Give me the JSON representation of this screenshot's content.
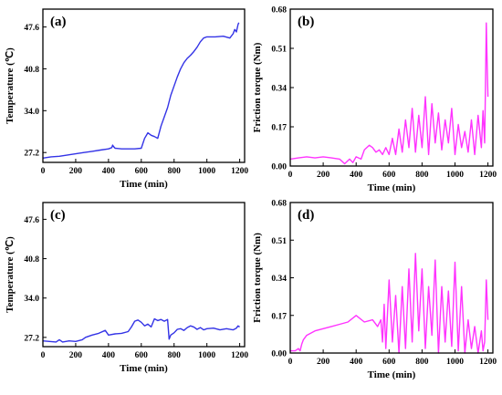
{
  "chart_data": [
    {
      "id": "a",
      "type": "line",
      "panel_label": "(a)",
      "xlabel": "Time (min)",
      "ylabel": "Temperature (℃)",
      "xlim": [
        0,
        1230
      ],
      "ylim": [
        25.6,
        50.5
      ],
      "x_ticks": [
        0,
        200,
        400,
        600,
        800,
        1000,
        1200
      ],
      "y_ticks": [
        27.2,
        34.0,
        40.8,
        47.6
      ],
      "y_tick_labels": [
        "27.2",
        "34.0",
        "40.8",
        "47.6"
      ],
      "color": "#3333e6",
      "series": [
        {
          "x": [
            0,
            50,
            100,
            150,
            200,
            250,
            300,
            350,
            400,
            420,
            425,
            430,
            440,
            480,
            520,
            560,
            600,
            620,
            640,
            660,
            680,
            700,
            720,
            740,
            760,
            780,
            800,
            820,
            840,
            860,
            880,
            900,
            920,
            940,
            960,
            980,
            1000,
            1050,
            1100,
            1140,
            1160,
            1170,
            1180,
            1190,
            1195
          ],
          "y": [
            26.3,
            26.5,
            26.6,
            26.8,
            27.0,
            27.2,
            27.4,
            27.6,
            27.8,
            28.0,
            28.4,
            28.2,
            27.9,
            27.8,
            27.8,
            27.8,
            27.9,
            29.5,
            30.4,
            30.0,
            29.8,
            29.5,
            31.5,
            33.0,
            34.5,
            36.5,
            38.0,
            39.5,
            40.8,
            41.8,
            42.5,
            43.0,
            43.6,
            44.3,
            45.2,
            45.8,
            46.0,
            46.0,
            46.1,
            45.8,
            46.5,
            47.2,
            46.8,
            48.0,
            48.3
          ]
        }
      ]
    },
    {
      "id": "b",
      "type": "line",
      "panel_label": "(b)",
      "xlabel": "Time (min)",
      "ylabel": "Friction torque (Nm)",
      "xlim": [
        0,
        1230
      ],
      "ylim": [
        0,
        0.68
      ],
      "x_ticks": [
        0,
        200,
        400,
        600,
        800,
        1000,
        1200
      ],
      "y_ticks": [
        0,
        0.17,
        0.34,
        0.51,
        0.68
      ],
      "y_tick_labels": [
        "0.00",
        "0.17",
        "0.34",
        "0.51",
        "0.68"
      ],
      "color": "#ff33ff",
      "series": [
        {
          "x": [
            0,
            50,
            100,
            150,
            200,
            250,
            300,
            330,
            360,
            380,
            400,
            430,
            450,
            480,
            500,
            520,
            540,
            560,
            580,
            600,
            620,
            640,
            660,
            680,
            700,
            720,
            740,
            760,
            780,
            800,
            820,
            840,
            860,
            880,
            900,
            920,
            940,
            960,
            980,
            1000,
            1020,
            1040,
            1060,
            1080,
            1100,
            1120,
            1140,
            1160,
            1170,
            1180,
            1185,
            1190,
            1195,
            1200
          ],
          "y": [
            0.03,
            0.035,
            0.04,
            0.035,
            0.04,
            0.035,
            0.03,
            0.01,
            0.03,
            0.015,
            0.04,
            0.03,
            0.07,
            0.09,
            0.08,
            0.06,
            0.07,
            0.05,
            0.08,
            0.05,
            0.12,
            0.05,
            0.16,
            0.06,
            0.2,
            0.08,
            0.25,
            0.06,
            0.22,
            0.08,
            0.3,
            0.05,
            0.27,
            0.1,
            0.23,
            0.07,
            0.2,
            0.1,
            0.25,
            0.05,
            0.18,
            0.08,
            0.15,
            0.06,
            0.2,
            0.05,
            0.22,
            0.08,
            0.24,
            0.1,
            0.35,
            0.62,
            0.45,
            0.3
          ]
        }
      ]
    },
    {
      "id": "c",
      "type": "line",
      "panel_label": "(c)",
      "xlabel": "Time (min)",
      "ylabel": "Temperature (℃)",
      "xlim": [
        0,
        1230
      ],
      "ylim": [
        25.6,
        50.5
      ],
      "x_ticks": [
        0,
        200,
        400,
        600,
        800,
        1000,
        1200
      ],
      "y_ticks": [
        27.2,
        34.0,
        40.8,
        47.6
      ],
      "y_tick_labels": [
        "27.2",
        "34.0",
        "40.8",
        "47.6"
      ],
      "color": "#3333e6",
      "series": [
        {
          "x": [
            0,
            40,
            80,
            100,
            120,
            160,
            200,
            240,
            260,
            300,
            340,
            380,
            400,
            440,
            480,
            520,
            540,
            560,
            580,
            600,
            620,
            640,
            660,
            680,
            700,
            720,
            740,
            760,
            770,
            780,
            800,
            820,
            840,
            860,
            880,
            900,
            920,
            940,
            960,
            980,
            1000,
            1040,
            1080,
            1120,
            1160,
            1180,
            1190,
            1200
          ],
          "y": [
            26.6,
            26.5,
            26.4,
            26.8,
            26.4,
            26.6,
            26.5,
            26.8,
            27.2,
            27.6,
            27.9,
            28.4,
            27.6,
            27.8,
            27.9,
            28.2,
            29.0,
            30.0,
            30.2,
            29.8,
            29.2,
            29.5,
            29.0,
            30.4,
            30.1,
            30.3,
            30.0,
            30.3,
            26.9,
            27.6,
            28.0,
            28.6,
            28.7,
            28.4,
            28.9,
            29.2,
            29.0,
            28.6,
            28.9,
            28.5,
            28.7,
            28.8,
            28.5,
            28.7,
            28.5,
            28.8,
            29.2,
            29.0
          ]
        }
      ]
    },
    {
      "id": "d",
      "type": "line",
      "panel_label": "(d)",
      "xlabel": "Time (min)",
      "ylabel": "Friction torque (Nm)",
      "xlim": [
        0,
        1230
      ],
      "ylim": [
        0,
        0.68
      ],
      "x_ticks": [
        0,
        200,
        400,
        600,
        800,
        1000,
        1200
      ],
      "y_ticks": [
        0,
        0.17,
        0.34,
        0.51,
        0.68
      ],
      "y_tick_labels": [
        "0.00",
        "0.17",
        "0.34",
        "0.51",
        "0.68"
      ],
      "color": "#ff33ff",
      "series": [
        {
          "x": [
            0,
            30,
            50,
            60,
            70,
            80,
            100,
            150,
            200,
            250,
            300,
            350,
            400,
            450,
            500,
            530,
            550,
            560,
            570,
            580,
            600,
            620,
            640,
            660,
            680,
            700,
            720,
            740,
            760,
            780,
            800,
            820,
            840,
            860,
            880,
            900,
            920,
            940,
            960,
            980,
            1000,
            1020,
            1040,
            1060,
            1080,
            1100,
            1120,
            1140,
            1160,
            1170,
            1180,
            1190,
            1200
          ],
          "y": [
            0.01,
            0.01,
            0.02,
            0.01,
            0.04,
            0.06,
            0.08,
            0.1,
            0.11,
            0.12,
            0.13,
            0.14,
            0.17,
            0.14,
            0.15,
            0.12,
            0.15,
            0.05,
            0.22,
            0.02,
            0.33,
            0.05,
            0.26,
            0.0,
            0.3,
            0.02,
            0.38,
            0.05,
            0.45,
            0.1,
            0.38,
            0.02,
            0.3,
            0.08,
            0.42,
            0.0,
            0.3,
            0.05,
            0.28,
            0.03,
            0.41,
            0.01,
            0.3,
            0.0,
            0.15,
            0.02,
            0.12,
            0.0,
            0.1,
            0.01,
            0.05,
            0.33,
            0.15
          ]
        }
      ]
    }
  ]
}
